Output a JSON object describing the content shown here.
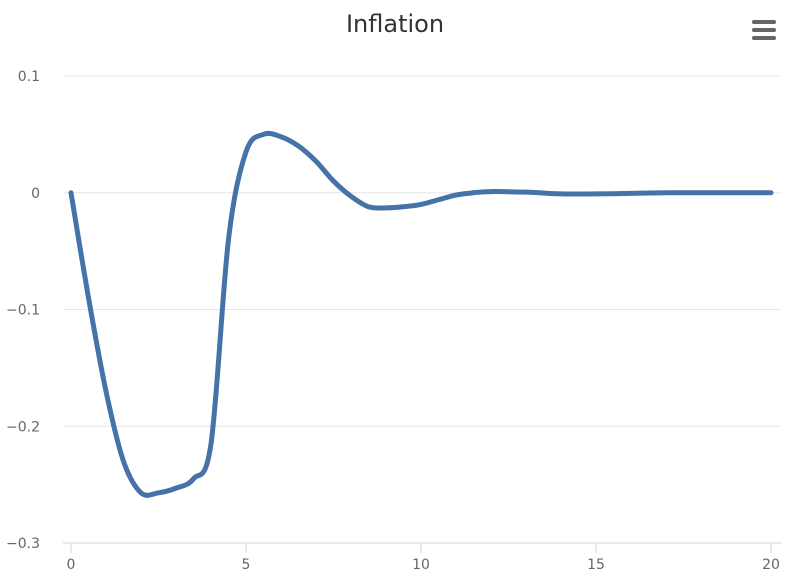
{
  "chart_data": {
    "type": "line",
    "title": "Inflation",
    "xlabel": "",
    "ylabel": "",
    "xlim": [
      0,
      20
    ],
    "ylim": [
      -0.3,
      0.1
    ],
    "x_ticks": [
      "0",
      "5",
      "10",
      "15",
      "20"
    ],
    "y_ticks": [
      "0.1",
      "0",
      "−0.1",
      "−0.2",
      "−0.3"
    ],
    "grid": "horizontal",
    "colors": {
      "line": "#4572a7",
      "grid": "#e6e6e6",
      "axis": "#ccd6eb"
    },
    "series": [
      {
        "x": [
          0,
          0.5,
          1,
          1.5,
          2,
          2.5,
          3,
          3.5,
          4,
          4.5,
          5,
          5.5,
          6,
          6.5,
          7,
          7.5,
          8,
          8.5,
          9,
          9.5,
          10,
          10.5,
          11,
          11.5,
          12,
          13,
          14,
          15,
          16,
          17,
          18,
          19,
          20
        ],
        "values": [
          0,
          -0.09,
          -0.17,
          -0.23,
          -0.257,
          -0.257,
          -0.253,
          -0.245,
          -0.215,
          -0.04,
          0.035,
          0.05,
          0.048,
          0.04,
          0.027,
          0.01,
          -0.003,
          -0.012,
          -0.013,
          -0.012,
          -0.01,
          -0.006,
          -0.002,
          0,
          0.001,
          0.0005,
          -0.001,
          -0.001,
          -0.0005,
          0,
          0,
          0,
          0
        ]
      }
    ]
  },
  "menu": {
    "icon": "hamburger-menu-icon"
  }
}
